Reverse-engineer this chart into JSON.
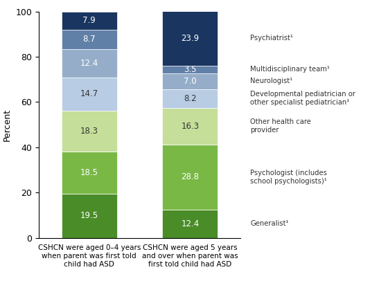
{
  "categories": [
    "CSHCN were aged 0–4 years\nwhen parent was first told\nchild had ASD",
    "CSHCN were aged 5 years\nand over when parent was\nfirst told child had ASD"
  ],
  "segments": [
    {
      "label": "Generalist¹",
      "values": [
        19.5,
        12.4
      ],
      "color": "#4a8c28"
    },
    {
      "label": "Psychologist (includes\nschool psychologists)¹",
      "values": [
        18.5,
        28.8
      ],
      "color": "#7ab846"
    },
    {
      "label": "Other health care\nprovider",
      "values": [
        18.3,
        16.3
      ],
      "color": "#c5de9a"
    },
    {
      "label": "Developmental pediatrician or\nother specialist pediatrician¹",
      "values": [
        14.7,
        8.2
      ],
      "color": "#b8cce4"
    },
    {
      "label": "Neurologist¹",
      "values": [
        12.4,
        7.0
      ],
      "color": "#95adc8"
    },
    {
      "label": "Multidisciplinary team¹",
      "values": [
        8.7,
        3.5
      ],
      "color": "#6080a8"
    },
    {
      "label": "Psychiatrist¹",
      "values": [
        7.9,
        23.9
      ],
      "color": "#1a3560"
    }
  ],
  "ylabel": "Percent",
  "ylim": [
    0,
    100
  ],
  "yticks": [
    0,
    20,
    40,
    60,
    80,
    100
  ],
  "bar_width": 0.55,
  "figsize": [
    5.6,
    4.19
  ],
  "dpi": 100,
  "text_color_dark": "#333333",
  "text_color_light": "#ffffff",
  "legend_fontsize": 7.2,
  "label_fontsize": 7.5,
  "value_fontsize": 8.5
}
